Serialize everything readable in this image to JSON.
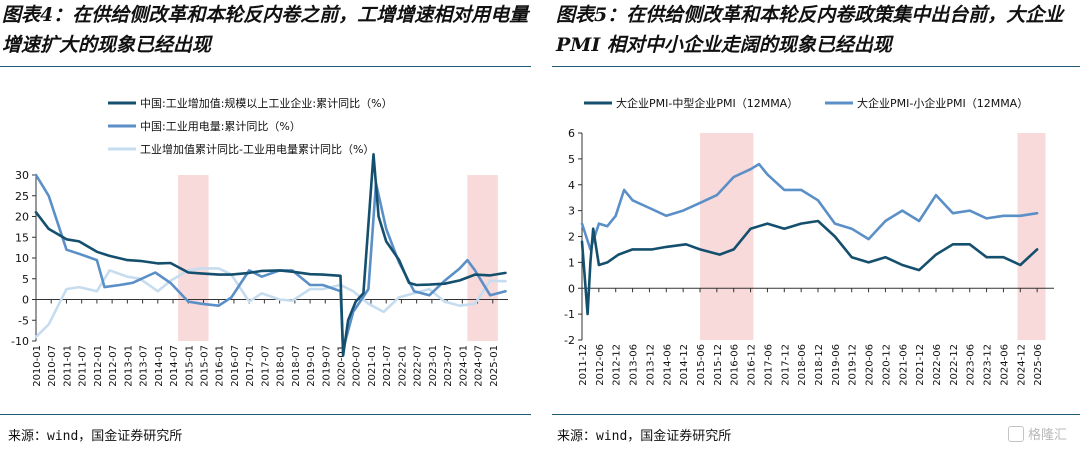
{
  "left": {
    "title": "图表4：在供给侧改革和本轮反内卷之前，工增增速相对用电量增速扩大的现象已经出现",
    "source": "来源：wind，国金证券研究所"
  },
  "right": {
    "title": "图表5：在供给侧改革和本轮反内卷政策集中出台前，大企业 PMI 相对中小企业走阔的现象已经出现",
    "source": "来源：wind，国金证券研究所"
  },
  "watermark": "格隆汇",
  "colors": {
    "dark": "#154f6e",
    "mid": "#5b8fc7",
    "light": "#c6dcef",
    "shade": "#f8dada",
    "axis": "#333333"
  },
  "chart_data": [
    {
      "type": "line",
      "x_labels": [
        "2010-01",
        "2010-07",
        "2011-01",
        "2011-07",
        "2012-01",
        "2012-07",
        "2013-01",
        "2013-07",
        "2014-01",
        "2014-07",
        "2015-01",
        "2015-07",
        "2016-01",
        "2016-07",
        "2017-01",
        "2017-07",
        "2018-01",
        "2018-07",
        "2019-01",
        "2019-07",
        "2020-01",
        "2020-07",
        "2021-01",
        "2021-07",
        "2022-01",
        "2022-07",
        "2023-01",
        "2023-07",
        "2024-01",
        "2024-07",
        "2025-01"
      ],
      "ylim": [
        -10,
        30
      ],
      "yticks": [
        -10,
        -5,
        0,
        5,
        10,
        15,
        20,
        25,
        30
      ],
      "shaded_periods": [
        [
          "2014-09",
          "2015-09"
        ],
        [
          "2024-03",
          "2025-03"
        ]
      ],
      "legend_position": "top",
      "series": [
        {
          "name": "中国:工业增加值:规模以上工业企业:累计同比（%）",
          "color": "dark",
          "x": [
            "2010-01",
            "2010-06",
            "2011-01",
            "2011-06",
            "2012-01",
            "2012-06",
            "2013-01",
            "2013-06",
            "2014-01",
            "2014-06",
            "2015-01",
            "2015-06",
            "2016-01",
            "2016-06",
            "2017-01",
            "2017-06",
            "2018-01",
            "2018-06",
            "2019-01",
            "2019-06",
            "2020-01",
            "2020-02",
            "2020-04",
            "2020-07",
            "2020-10",
            "2021-02",
            "2021-04",
            "2021-07",
            "2021-12",
            "2022-04",
            "2022-07",
            "2022-12",
            "2023-06",
            "2023-12",
            "2024-06",
            "2024-12",
            "2025-06"
          ],
          "values": [
            21,
            17,
            14.5,
            14,
            11.5,
            10.5,
            9.5,
            9.3,
            8.7,
            8.8,
            6.5,
            6.3,
            6.0,
            6.0,
            6.4,
            6.9,
            7.0,
            6.7,
            6.1,
            6.0,
            5.7,
            -13.5,
            -5,
            -0.5,
            1.5,
            35,
            20,
            14,
            9.6,
            4,
            3.5,
            3.6,
            3.8,
            4.6,
            6,
            5.8,
            6.4
          ]
        },
        {
          "name": "中国:工业用电量:累计同比（%）",
          "color": "mid",
          "x": [
            "2010-01",
            "2010-06",
            "2011-01",
            "2011-06",
            "2012-01",
            "2012-04",
            "2012-10",
            "2013-03",
            "2013-12",
            "2014-06",
            "2015-01",
            "2015-06",
            "2016-01",
            "2016-06",
            "2017-01",
            "2017-06",
            "2018-01",
            "2018-06",
            "2019-01",
            "2019-06",
            "2020-01",
            "2020-02",
            "2020-06",
            "2020-12",
            "2021-03",
            "2021-07",
            "2021-12",
            "2022-06",
            "2022-12",
            "2023-06",
            "2023-12",
            "2024-03",
            "2024-06",
            "2024-12",
            "2025-06"
          ],
          "values": [
            30,
            25,
            12,
            11,
            9.5,
            3,
            3.5,
            4,
            6.5,
            4,
            -0.5,
            -1,
            -1.5,
            0.5,
            7,
            5.5,
            7,
            7,
            3.5,
            3.5,
            2,
            -12,
            -3,
            2.5,
            28,
            17,
            9,
            2,
            1,
            4.5,
            7.5,
            9.5,
            7,
            1,
            2
          ]
        },
        {
          "name": "工业增加值累计同比-工业用电量累计同比（%）",
          "color": "light",
          "x": [
            "2010-01",
            "2010-06",
            "2011-01",
            "2011-06",
            "2012-01",
            "2012-06",
            "2013-01",
            "2013-06",
            "2014-01",
            "2014-06",
            "2015-01",
            "2015-06",
            "2016-01",
            "2016-06",
            "2017-01",
            "2017-06",
            "2018-01",
            "2018-06",
            "2019-01",
            "2019-06",
            "2020-01",
            "2020-06",
            "2020-12",
            "2021-06",
            "2021-12",
            "2022-06",
            "2022-12",
            "2023-06",
            "2023-12",
            "2024-06",
            "2024-12",
            "2025-06"
          ],
          "values": [
            -9,
            -6,
            2.5,
            3,
            2,
            7,
            5.5,
            5,
            2,
            4.5,
            7,
            7.5,
            7.5,
            6,
            -0.5,
            1.5,
            0,
            -0.3,
            2.5,
            2.5,
            3.5,
            2,
            -1,
            -3,
            0.5,
            1.5,
            2.5,
            -0.5,
            -1.5,
            -1,
            4.5,
            4.4
          ]
        }
      ]
    },
    {
      "type": "line",
      "x_labels": [
        "2011-12",
        "2012-06",
        "2012-12",
        "2013-06",
        "2013-12",
        "2014-06",
        "2014-12",
        "2015-06",
        "2015-12",
        "2016-06",
        "2016-12",
        "2017-06",
        "2017-12",
        "2018-06",
        "2018-12",
        "2019-06",
        "2019-12",
        "2020-06",
        "2020-12",
        "2021-06",
        "2021-12",
        "2022-06",
        "2022-12",
        "2023-06",
        "2023-12",
        "2024-06",
        "2024-12",
        "2025-06"
      ],
      "ylim": [
        -2,
        6
      ],
      "yticks": [
        -2,
        -1,
        0,
        1,
        2,
        3,
        4,
        5,
        6
      ],
      "shaded_periods": [
        [
          "2015-06",
          "2017-01"
        ],
        [
          "2024-11",
          "2025-09"
        ]
      ],
      "legend_position": "top",
      "series": [
        {
          "name": "大企业PMI-中型企业PMI（12MMA）",
          "color": "dark",
          "x": [
            "2011-12",
            "2012-02",
            "2012-03",
            "2012-04",
            "2012-06",
            "2012-09",
            "2013-01",
            "2013-06",
            "2014-01",
            "2014-06",
            "2015-01",
            "2015-06",
            "2016-01",
            "2016-06",
            "2016-12",
            "2017-06",
            "2017-12",
            "2018-06",
            "2018-12",
            "2019-06",
            "2019-12",
            "2020-06",
            "2020-12",
            "2021-06",
            "2021-12",
            "2022-06",
            "2022-12",
            "2023-06",
            "2023-12",
            "2024-06",
            "2024-12",
            "2025-06"
          ],
          "values": [
            1.8,
            -1.0,
            1.0,
            2.3,
            0.9,
            1.0,
            1.3,
            1.5,
            1.5,
            1.6,
            1.7,
            1.5,
            1.3,
            1.5,
            2.3,
            2.5,
            2.3,
            2.5,
            2.6,
            2.0,
            1.2,
            1.0,
            1.2,
            0.9,
            0.7,
            1.3,
            1.7,
            1.7,
            1.2,
            1.2,
            0.9,
            1.5
          ]
        },
        {
          "name": "大企业PMI-小企业PMI（12MMA）",
          "color": "mid",
          "x": [
            "2011-12",
            "2012-03",
            "2012-06",
            "2012-09",
            "2012-12",
            "2013-03",
            "2013-06",
            "2013-12",
            "2014-06",
            "2014-12",
            "2015-06",
            "2015-12",
            "2016-06",
            "2016-12",
            "2017-03",
            "2017-06",
            "2017-12",
            "2018-06",
            "2018-12",
            "2019-06",
            "2019-12",
            "2020-06",
            "2020-12",
            "2021-06",
            "2021-12",
            "2022-06",
            "2022-12",
            "2023-06",
            "2023-12",
            "2024-06",
            "2024-12",
            "2025-06"
          ],
          "values": [
            2.5,
            1.5,
            2.5,
            2.4,
            2.8,
            3.8,
            3.4,
            3.1,
            2.8,
            3.0,
            3.3,
            3.6,
            4.3,
            4.6,
            4.8,
            4.4,
            3.8,
            3.8,
            3.4,
            2.5,
            2.3,
            1.9,
            2.6,
            3.0,
            2.6,
            3.6,
            2.9,
            3.0,
            2.7,
            2.8,
            2.8,
            2.9
          ]
        }
      ]
    }
  ]
}
